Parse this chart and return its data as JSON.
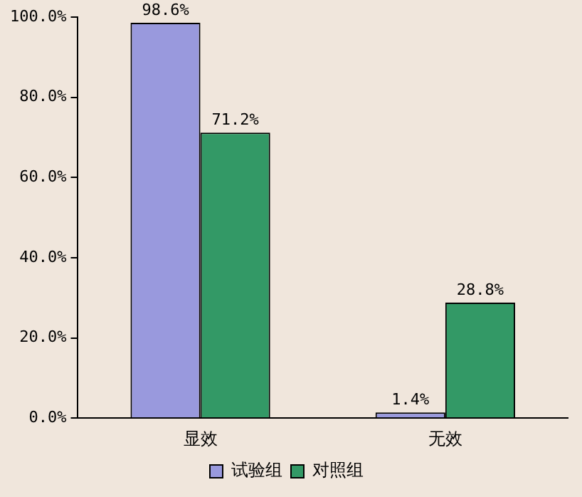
{
  "chart_data": {
    "type": "bar",
    "categories": [
      "显效",
      "无效"
    ],
    "series": [
      {
        "name": "试验组",
        "color": "#9999dd",
        "values": [
          98.6,
          1.4
        ],
        "value_labels": [
          "98.6%",
          "1.4%"
        ]
      },
      {
        "name": "对照组",
        "color": "#339966",
        "values": [
          71.2,
          28.8
        ],
        "value_labels": [
          "71.2%",
          "28.8%"
        ]
      }
    ],
    "ylim": [
      0,
      100
    ],
    "yticks": [
      {
        "value": 0,
        "label": "0.0%"
      },
      {
        "value": 20,
        "label": "20.0%"
      },
      {
        "value": 40,
        "label": "40.0%"
      },
      {
        "value": 60,
        "label": "60.0%"
      },
      {
        "value": 80,
        "label": "80.0%"
      },
      {
        "value": 100,
        "label": "100.0%"
      }
    ],
    "grid": false,
    "legend": "bottom"
  }
}
